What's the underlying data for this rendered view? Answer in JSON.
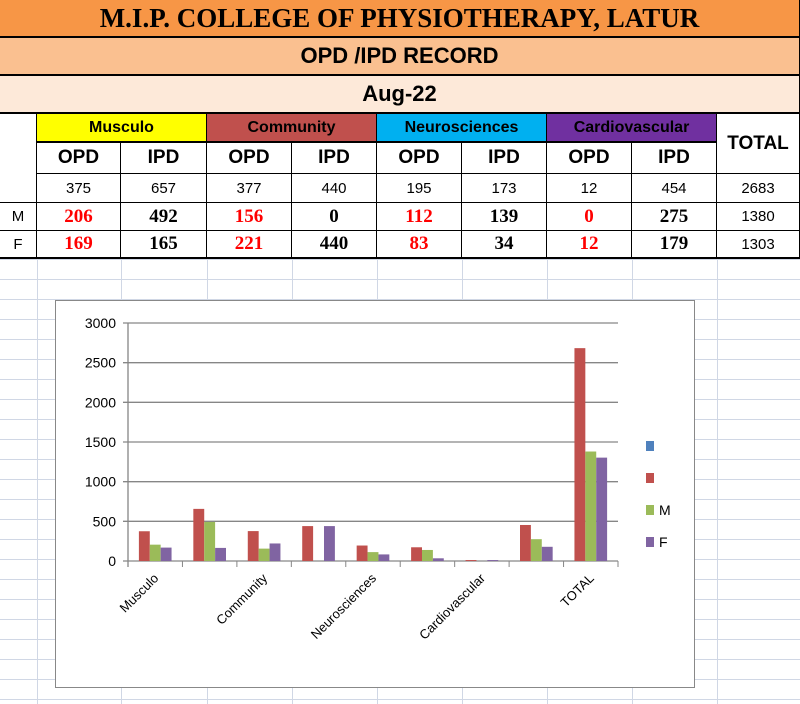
{
  "header": {
    "title": "M.I.P. COLLEGE OF PHYSIOTHERAPY, LATUR",
    "subtitle": "OPD /IPD RECORD",
    "month": "Aug-22"
  },
  "table": {
    "groups": [
      {
        "label": "Musculo",
        "color": "#ffff00"
      },
      {
        "label": "Community",
        "color": "#c0504d"
      },
      {
        "label": "Neurosciences",
        "color": "#00b0f0"
      },
      {
        "label": "Cardiovascular",
        "color": "#7030a0"
      }
    ],
    "total_label": "TOTAL",
    "sub": [
      "OPD",
      "IPD",
      "OPD",
      "IPD",
      "OPD",
      "IPD",
      "OPD",
      "IPD"
    ],
    "rows": [
      {
        "label": "",
        "values": [
          "375",
          "657",
          "377",
          "440",
          "195",
          "173",
          "12",
          "454"
        ],
        "total": "2683"
      },
      {
        "label": "M",
        "values": [
          "206",
          "492",
          "156",
          "0",
          "112",
          "139",
          "0",
          "275"
        ],
        "total": "1380"
      },
      {
        "label": "F",
        "values": [
          "169",
          "165",
          "221",
          "440",
          "83",
          "34",
          "12",
          "179"
        ],
        "total": "1303"
      }
    ]
  },
  "chart_data": {
    "type": "bar",
    "categories": [
      "Musculo",
      "",
      "Community",
      "",
      "Neurosciences",
      "",
      "Cardiovascular",
      "",
      "TOTAL"
    ],
    "series": [
      {
        "name": "",
        "color": "#4f81bd",
        "values": [
          null,
          null,
          null,
          null,
          null,
          null,
          null,
          null,
          null
        ]
      },
      {
        "name": "",
        "color": "#c0504d",
        "values": [
          375,
          657,
          377,
          440,
          195,
          173,
          12,
          454,
          2683
        ]
      },
      {
        "name": "M",
        "color": "#9bbb59",
        "values": [
          206,
          492,
          156,
          0,
          112,
          139,
          0,
          275,
          1380
        ]
      },
      {
        "name": "F",
        "color": "#8064a2",
        "values": [
          169,
          165,
          221,
          440,
          83,
          34,
          12,
          179,
          1303
        ]
      }
    ],
    "yticks": [
      "0",
      "500",
      "1000",
      "1500",
      "2000",
      "2500",
      "3000"
    ],
    "ylim": [
      0,
      3000
    ],
    "grid": true,
    "legend": "right"
  }
}
